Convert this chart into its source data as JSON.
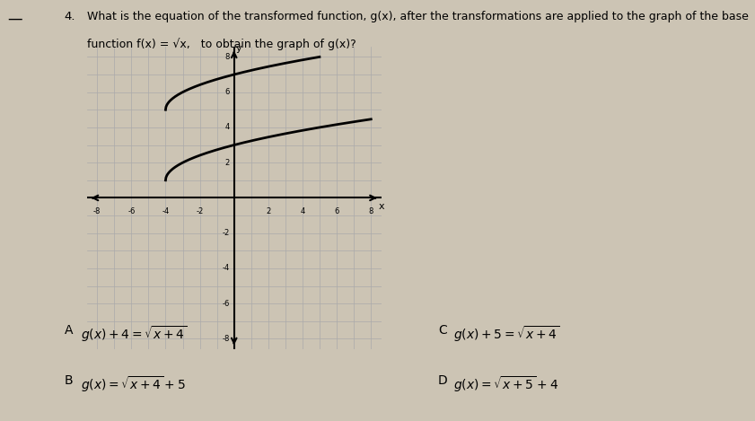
{
  "title_line1": "What is the equation of the transformed function, g(x), after the transformations are applied to the graph of the base",
  "title_line2": "function f(x) = √x,   to obtain the graph of g(x)?",
  "question_number": "4.",
  "bg_color": "#ccc4b4",
  "grid_color": "#aaaaaa",
  "axis_color": "#000000",
  "curve_color": "#000000",
  "xmin": -8,
  "xmax": 8,
  "ymin": -8,
  "ymax": 8,
  "xticks": [
    -8,
    -6,
    -4,
    -2,
    2,
    4,
    6,
    8
  ],
  "yticks": [
    -8,
    -6,
    -4,
    -2,
    2,
    4,
    6,
    8
  ],
  "curve1_start_x": -4,
  "curve1_shift_y": 5,
  "curve2_start_x": -4,
  "curve2_shift_y": 1
}
